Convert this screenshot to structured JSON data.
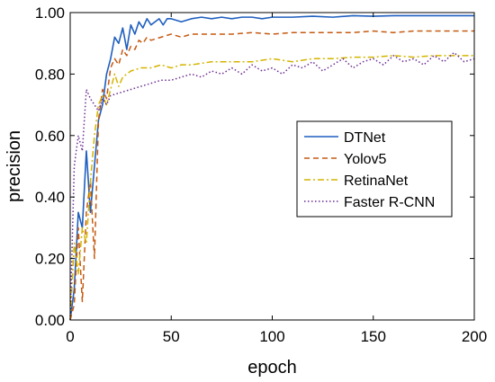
{
  "chart_data": {
    "type": "line",
    "xlabel": "epoch",
    "ylabel": "precision",
    "xlim": [
      0,
      200
    ],
    "ylim": [
      0,
      1
    ],
    "xticks": [
      0,
      50,
      100,
      150,
      200
    ],
    "yticks": [
      0,
      0.2,
      0.4,
      0.6,
      0.8,
      1.0
    ],
    "xtick_labels": [
      "0",
      "50",
      "100",
      "150",
      "200"
    ],
    "ytick_labels": [
      "0.00",
      "0.20",
      "0.40",
      "0.60",
      "0.80",
      "1.00"
    ],
    "grid": false,
    "legend_position": "center-right",
    "series": [
      {
        "name": "DTNet",
        "color": "#1f5fbf",
        "dash": "solid",
        "x": [
          0,
          2,
          4,
          6,
          8,
          10,
          12,
          14,
          16,
          18,
          20,
          22,
          24,
          26,
          28,
          30,
          32,
          34,
          36,
          38,
          40,
          42,
          44,
          46,
          48,
          50,
          55,
          60,
          65,
          70,
          75,
          80,
          85,
          90,
          95,
          100,
          110,
          120,
          130,
          140,
          150,
          160,
          170,
          180,
          190,
          200
        ],
        "y": [
          0.0,
          0.1,
          0.35,
          0.3,
          0.55,
          0.35,
          0.5,
          0.65,
          0.7,
          0.8,
          0.85,
          0.92,
          0.9,
          0.95,
          0.88,
          0.96,
          0.93,
          0.97,
          0.95,
          0.98,
          0.96,
          0.97,
          0.98,
          0.96,
          0.98,
          0.98,
          0.97,
          0.98,
          0.985,
          0.98,
          0.985,
          0.98,
          0.985,
          0.985,
          0.98,
          0.985,
          0.985,
          0.988,
          0.985,
          0.99,
          0.988,
          0.99,
          0.99,
          0.99,
          0.99,
          0.99
        ]
      },
      {
        "name": "Yolov5",
        "color": "#c55a11",
        "dash": "dashed",
        "x": [
          0,
          2,
          4,
          6,
          8,
          10,
          12,
          14,
          16,
          18,
          20,
          22,
          24,
          26,
          28,
          30,
          32,
          34,
          36,
          38,
          40,
          45,
          50,
          55,
          60,
          70,
          80,
          90,
          100,
          110,
          120,
          130,
          140,
          150,
          160,
          170,
          180,
          190,
          200
        ],
        "y": [
          0.0,
          0.05,
          0.3,
          0.06,
          0.35,
          0.45,
          0.2,
          0.65,
          0.75,
          0.72,
          0.82,
          0.85,
          0.83,
          0.88,
          0.86,
          0.89,
          0.88,
          0.91,
          0.9,
          0.92,
          0.91,
          0.92,
          0.93,
          0.92,
          0.93,
          0.93,
          0.93,
          0.935,
          0.93,
          0.935,
          0.935,
          0.935,
          0.935,
          0.94,
          0.935,
          0.94,
          0.94,
          0.94,
          0.94
        ]
      },
      {
        "name": "RetinaNet",
        "color": "#d4b400",
        "dash": "dashdot",
        "x": [
          0,
          2,
          4,
          6,
          8,
          10,
          12,
          14,
          16,
          18,
          20,
          22,
          24,
          26,
          28,
          30,
          35,
          40,
          45,
          50,
          55,
          60,
          70,
          80,
          90,
          100,
          110,
          120,
          130,
          140,
          150,
          160,
          170,
          180,
          190,
          200
        ],
        "y": [
          0.0,
          0.25,
          0.15,
          0.3,
          0.25,
          0.45,
          0.6,
          0.7,
          0.73,
          0.7,
          0.75,
          0.8,
          0.76,
          0.79,
          0.8,
          0.81,
          0.82,
          0.82,
          0.83,
          0.82,
          0.83,
          0.83,
          0.84,
          0.84,
          0.84,
          0.85,
          0.84,
          0.85,
          0.85,
          0.855,
          0.855,
          0.86,
          0.855,
          0.86,
          0.86,
          0.86
        ]
      },
      {
        "name": "Faster R-CNN",
        "color": "#6a2c91",
        "dash": "dotted",
        "x": [
          0,
          2,
          4,
          6,
          8,
          10,
          12,
          14,
          16,
          18,
          20,
          25,
          30,
          35,
          40,
          45,
          50,
          55,
          60,
          65,
          70,
          75,
          80,
          85,
          90,
          95,
          100,
          105,
          110,
          115,
          120,
          125,
          130,
          135,
          140,
          145,
          150,
          155,
          160,
          165,
          170,
          175,
          180,
          185,
          190,
          195,
          200
        ],
        "y": [
          0.0,
          0.5,
          0.6,
          0.55,
          0.75,
          0.72,
          0.7,
          0.68,
          0.72,
          0.7,
          0.73,
          0.74,
          0.75,
          0.76,
          0.77,
          0.78,
          0.78,
          0.79,
          0.8,
          0.79,
          0.81,
          0.8,
          0.82,
          0.8,
          0.83,
          0.81,
          0.82,
          0.8,
          0.83,
          0.82,
          0.84,
          0.81,
          0.83,
          0.85,
          0.82,
          0.84,
          0.85,
          0.83,
          0.86,
          0.84,
          0.85,
          0.83,
          0.86,
          0.84,
          0.87,
          0.84,
          0.85
        ]
      }
    ]
  }
}
